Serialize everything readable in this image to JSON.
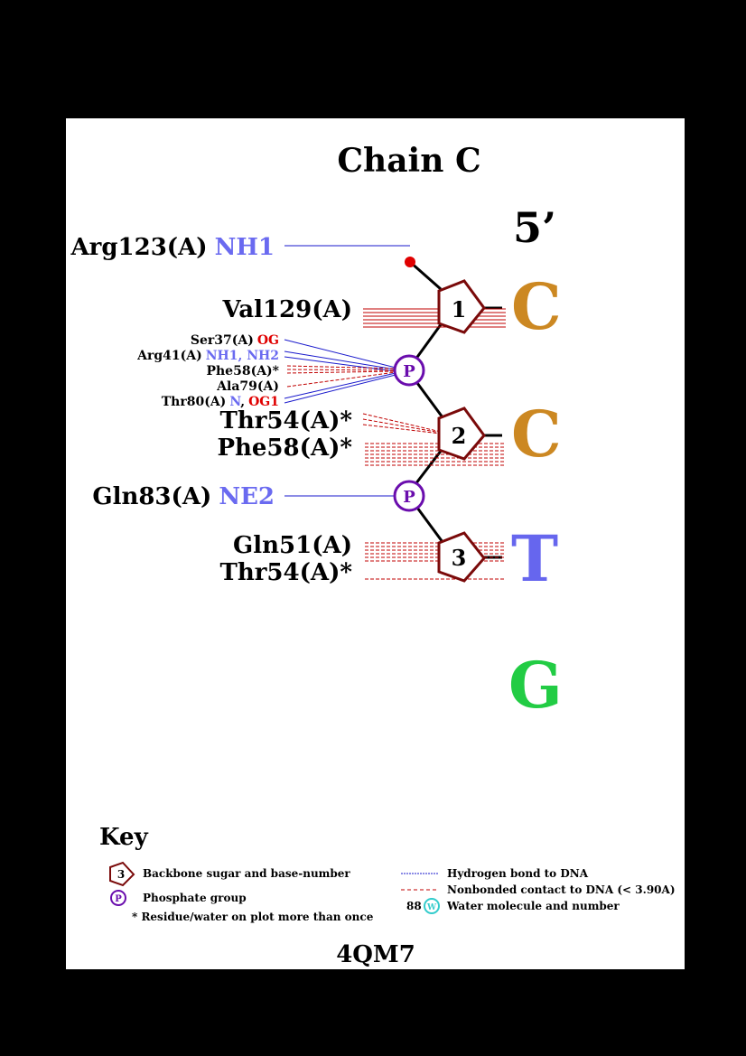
{
  "title": "Chain C",
  "five_prime": "5’",
  "pdb_id": "4QM7",
  "colors": {
    "sugar": "#7a0a0a",
    "phosphate": "#6a0dad",
    "hbond": "#1a1acc",
    "nonbonded": "#c00000",
    "atom_blue": "#6a6af0",
    "atom_red": "#e00000",
    "water": "#33cccc",
    "base_C": "#cc8822",
    "base_T": "#6666ee",
    "base_G": "#22cc44"
  },
  "nucleotides": [
    {
      "number": "1",
      "base": "C"
    },
    {
      "number": "2",
      "base": "C"
    },
    {
      "number": "3",
      "base": "T"
    },
    {
      "number": "",
      "base": "G"
    }
  ],
  "phosphate_label": "P",
  "residues": {
    "arg123": {
      "name": "Arg123(A)",
      "atom": "NH1"
    },
    "val129": {
      "name": "Val129(A)"
    },
    "ser37": {
      "name": "Ser37(A)",
      "atom": "OG"
    },
    "arg41": {
      "name": "Arg41(A)",
      "atom": "NH1, NH2"
    },
    "phe58a": {
      "name": "Phe58(A)*"
    },
    "ala79": {
      "name": "Ala79(A)"
    },
    "thr80": {
      "name": "Thr80(A)",
      "atom_n": "N",
      "sep": ",",
      "atom_og1": "OG1"
    },
    "thr54a": {
      "name": "Thr54(A)*"
    },
    "phe58b": {
      "name": "Phe58(A)*"
    },
    "gln83": {
      "name": "Gln83(A)",
      "atom": "NE2"
    },
    "gln51": {
      "name": "Gln51(A)"
    },
    "thr54b": {
      "name": "Thr54(A)*"
    }
  },
  "key": {
    "heading": "Key",
    "sugar_sample": "3",
    "sugar_label": "Backbone sugar and base-number",
    "phosphate_sample": "P",
    "phosphate_label": "Phosphate group",
    "star_label": "* Residue/water on plot more than once",
    "hbond_label": "Hydrogen bond to DNA",
    "nonbonded_label": "Nonbonded contact to DNA (< 3.90A)",
    "water_number": "88",
    "water_symbol": "W",
    "water_label": "Water molecule and number"
  }
}
